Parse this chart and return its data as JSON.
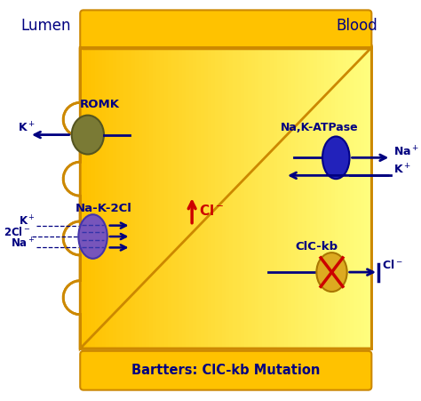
{
  "bg_color": "#ffffff",
  "gold": "#FFC200",
  "gold_edge": "#CC8800",
  "gold_light": "#FFE566",
  "navy": "#000080",
  "red": "#CC0000",
  "romk_color": "#7A7A35",
  "romk_edge": "#555520",
  "naka_color": "#2222BB",
  "naka_edge": "#000088",
  "nakacl_color": "#7755BB",
  "nakacl_edge": "#4433AA",
  "nakacl_line": "#3333AA",
  "clckb_color": "#DDAA20",
  "clckb_edge": "#AA7700",
  "lumen_label": "Lumen",
  "blood_label": "Blood",
  "romk_label": "ROMK",
  "naka_label": "Na,K-ATPase",
  "nakacl_label": "Na-K-2Cl",
  "clckb_label": "ClC-kb",
  "bottom_label": "Bartters: ClC-kb Mutation",
  "k_plus": "K",
  "na_plus": "Na",
  "cl_minus": "Cl",
  "two_cl": "2Cl"
}
